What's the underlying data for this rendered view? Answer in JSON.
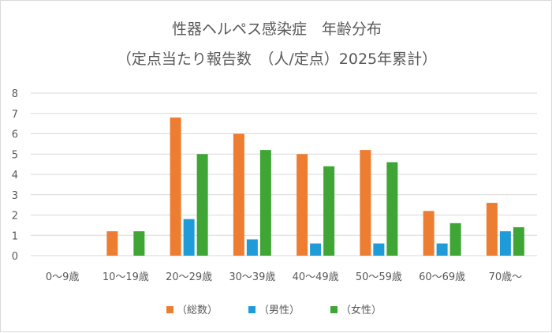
{
  "chart_data": {
    "type": "bar",
    "title": "性器ヘルペス感染症　年齢分布",
    "subtitle": "（定点当たり報告数　（人/定点）2025年累計）",
    "categories": [
      "0～9歳",
      "10～19歳",
      "20～29歳",
      "30～39歳",
      "40～49歳",
      "50～59歳",
      "60～69歳",
      "70歳～"
    ],
    "series": [
      {
        "name": "（総数）",
        "color": "#ed7d31",
        "values": [
          0,
          1.2,
          6.8,
          6.0,
          5.0,
          5.2,
          2.2,
          2.6
        ]
      },
      {
        "name": "（男性）",
        "color": "#1f9bd7",
        "values": [
          0,
          0,
          1.8,
          0.8,
          0.6,
          0.6,
          0.6,
          1.2
        ]
      },
      {
        "name": "（女性）",
        "color": "#3fa535",
        "values": [
          0,
          1.2,
          5.0,
          5.2,
          4.4,
          4.6,
          1.6,
          1.4
        ]
      }
    ],
    "ylim": [
      0,
      8
    ],
    "yticks": [
      0,
      1,
      2,
      3,
      4,
      5,
      6,
      7,
      8
    ],
    "grid": true,
    "legend_position": "bottom"
  }
}
